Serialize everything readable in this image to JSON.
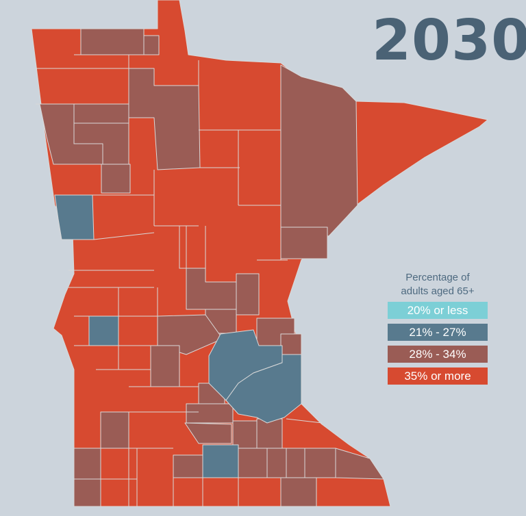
{
  "title": "2030",
  "legend": {
    "title_line1": "Percentage of",
    "title_line2": "adults aged 65+",
    "items": [
      {
        "label": "20% or less",
        "color": "#7ccfd6"
      },
      {
        "label": "21% - 27%",
        "color": "#587a8e"
      },
      {
        "label": "28% - 34%",
        "color": "#9a5c55"
      },
      {
        "label": "35% or more",
        "color": "#d74a30"
      }
    ]
  },
  "colors": {
    "background": "#ccd4dc",
    "county_border": "#d9d9d9"
  }
}
